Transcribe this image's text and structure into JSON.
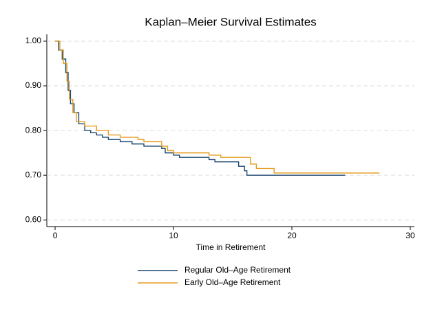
{
  "chart_data": {
    "type": "step",
    "title": "Kaplan–Meier Survival Estimates",
    "x_label": "Time in Retirement",
    "xlim": [
      -0.7,
      30.35
    ],
    "ylim": [
      0.585,
      1.023
    ],
    "xticks": [
      0,
      10,
      20,
      30
    ],
    "yticks": [
      {
        "value": 0.6,
        "label": "0.60"
      },
      {
        "value": 0.7,
        "label": "0.70"
      },
      {
        "value": 0.8,
        "label": "0.80"
      },
      {
        "value": 0.9,
        "label": "0.90"
      },
      {
        "value": 1.0,
        "label": "1.00"
      }
    ],
    "grid": true,
    "legend": "bottom",
    "series": [
      {
        "name": "Regular Old–Age Retirement",
        "color": "#1a476f",
        "x": [
          0,
          0.3,
          0.6,
          0.9,
          1.1,
          1.3,
          1.6,
          2,
          2.5,
          3,
          3.5,
          4,
          4.5,
          5.5,
          6.5,
          7.5,
          9,
          9.3,
          10,
          10.5,
          13,
          13.5,
          15.5,
          16,
          16.2,
          24.5
        ],
        "values": [
          1.0,
          0.98,
          0.96,
          0.93,
          0.89,
          0.86,
          0.84,
          0.815,
          0.8,
          0.795,
          0.79,
          0.785,
          0.78,
          0.775,
          0.77,
          0.765,
          0.76,
          0.75,
          0.745,
          0.74,
          0.735,
          0.73,
          0.72,
          0.71,
          0.7,
          0.7
        ]
      },
      {
        "name": "Early Old–Age Retirement",
        "color": "#e69a1c",
        "x": [
          0,
          0.4,
          0.7,
          1,
          1.2,
          1.5,
          1.8,
          2.5,
          3.5,
          4.5,
          5.5,
          7,
          7.5,
          9,
          9.5,
          10,
          13,
          14,
          16.5,
          17,
          18.5,
          27.4
        ],
        "values": [
          1.0,
          0.98,
          0.95,
          0.91,
          0.87,
          0.84,
          0.82,
          0.81,
          0.8,
          0.79,
          0.785,
          0.78,
          0.775,
          0.765,
          0.755,
          0.75,
          0.745,
          0.74,
          0.725,
          0.715,
          0.705,
          0.705
        ]
      }
    ]
  }
}
